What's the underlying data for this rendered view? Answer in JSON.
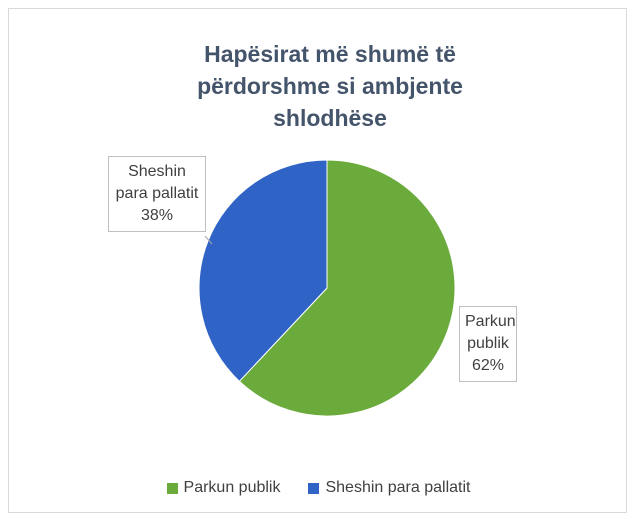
{
  "chart_data": {
    "type": "pie",
    "title": "Hapësirat më shumë të përdorshme si ambjente shlodhëse",
    "categories": [
      "Parkun publik",
      "Sheshin para pallatit"
    ],
    "values": [
      62,
      38
    ],
    "value_labels": [
      "62%",
      "38%"
    ],
    "colors": [
      "#6aab3b",
      "#2f63c6"
    ],
    "legend": "bottom"
  }
}
